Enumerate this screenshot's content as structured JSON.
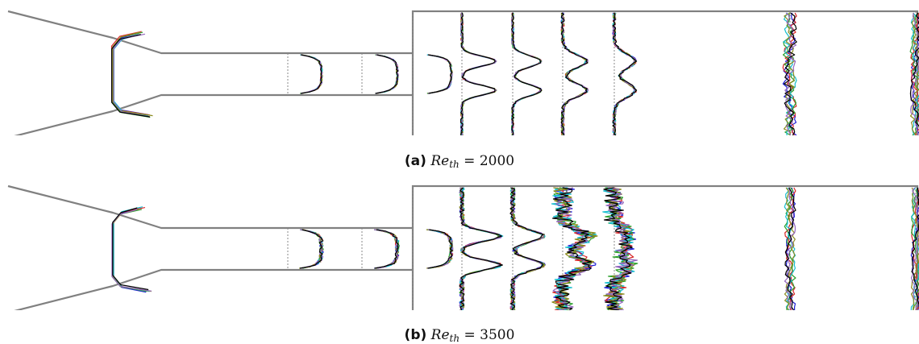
{
  "panels": [
    {
      "id": "a",
      "caption_label": "(a)",
      "variable": "Re",
      "subscript": "th",
      "equals": "=",
      "value": "2000"
    },
    {
      "id": "b",
      "caption_label": "(b)",
      "variable": "Re",
      "subscript": "th",
      "equals": "=",
      "value": "3500"
    }
  ],
  "colors": {
    "geometry": "#808080",
    "probe_line": "#888888",
    "series": [
      "#1f1fd6",
      "#d62728",
      "#2ca02c",
      "#17becf",
      "#8c8c1f",
      "#9467bd",
      "#000000"
    ]
  }
}
